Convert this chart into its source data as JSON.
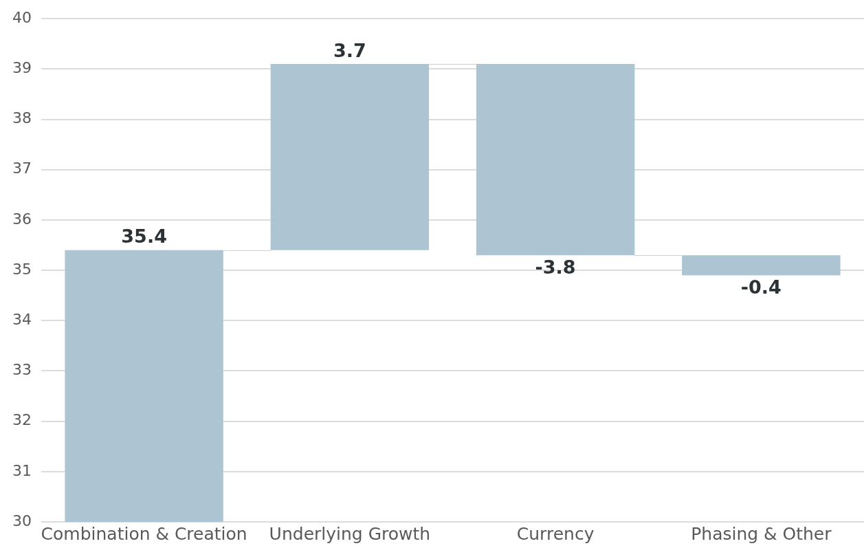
{
  "chart_data": {
    "type": "bar",
    "categories": [
      "Combination & Creation",
      "Underlying Growth",
      "Currency",
      "Phasing & Other"
    ],
    "values": [
      35.4,
      3.7,
      -3.8,
      -0.4
    ],
    "base": [
      null,
      35.4,
      39.1,
      35.3
    ],
    "color": "#adc4d3",
    "value_labels": [
      "35.4",
      "3.7",
      "-3.8",
      "-0.4"
    ],
    "ylim": [
      30,
      40
    ],
    "yticks": [
      30,
      31,
      32,
      33,
      34,
      35,
      36,
      37,
      38,
      39,
      40
    ],
    "grid": "y",
    "legend": false
  }
}
